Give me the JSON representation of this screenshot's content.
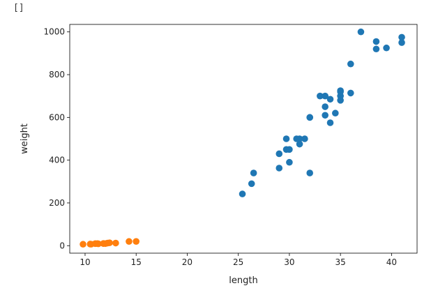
{
  "cell": {
    "output_prompt": "[]"
  },
  "chart_data": {
    "type": "scatter",
    "title": "",
    "xlabel": "length",
    "ylabel": "weight",
    "xlim": [
      8.5,
      42.5
    ],
    "ylim": [
      -35,
      1035
    ],
    "xticks": [
      10,
      15,
      20,
      25,
      30,
      35,
      40
    ],
    "yticks": [
      0,
      200,
      400,
      600,
      800,
      1000
    ],
    "grid": false,
    "series": [
      {
        "color": "#1f77b4",
        "points": [
          [
            25.4,
            242
          ],
          [
            26.3,
            290
          ],
          [
            26.5,
            340
          ],
          [
            29.0,
            363
          ],
          [
            29.0,
            430
          ],
          [
            29.7,
            450
          ],
          [
            29.7,
            500
          ],
          [
            30.0,
            390
          ],
          [
            30.0,
            450
          ],
          [
            30.7,
            500
          ],
          [
            31.0,
            475
          ],
          [
            31.0,
            500
          ],
          [
            31.5,
            500
          ],
          [
            32.0,
            340
          ],
          [
            32.0,
            600
          ],
          [
            32.0,
            600
          ],
          [
            33.0,
            700
          ],
          [
            33.5,
            700
          ],
          [
            33.5,
            610
          ],
          [
            33.5,
            650
          ],
          [
            34.0,
            575
          ],
          [
            34.0,
            685
          ],
          [
            34.5,
            620
          ],
          [
            35.0,
            680
          ],
          [
            35.0,
            700
          ],
          [
            35.0,
            725
          ],
          [
            35.0,
            720
          ],
          [
            36.0,
            714
          ],
          [
            36.0,
            850
          ],
          [
            37.0,
            1000
          ],
          [
            38.5,
            920
          ],
          [
            38.5,
            955
          ],
          [
            39.5,
            925
          ],
          [
            41.0,
            975
          ],
          [
            41.0,
            950
          ]
        ]
      },
      {
        "color": "#ff7f0e",
        "points": [
          [
            9.8,
            6.7
          ],
          [
            10.5,
            7.5
          ],
          [
            10.6,
            7.0
          ],
          [
            11.0,
            9.7
          ],
          [
            11.2,
            9.8
          ],
          [
            11.3,
            8.7
          ],
          [
            11.8,
            10.0
          ],
          [
            11.8,
            9.9
          ],
          [
            12.0,
            9.8
          ],
          [
            12.2,
            12.2
          ],
          [
            12.4,
            13.4
          ],
          [
            13.0,
            12.2
          ],
          [
            14.3,
            19.7
          ],
          [
            15.0,
            19.9
          ]
        ]
      }
    ]
  }
}
